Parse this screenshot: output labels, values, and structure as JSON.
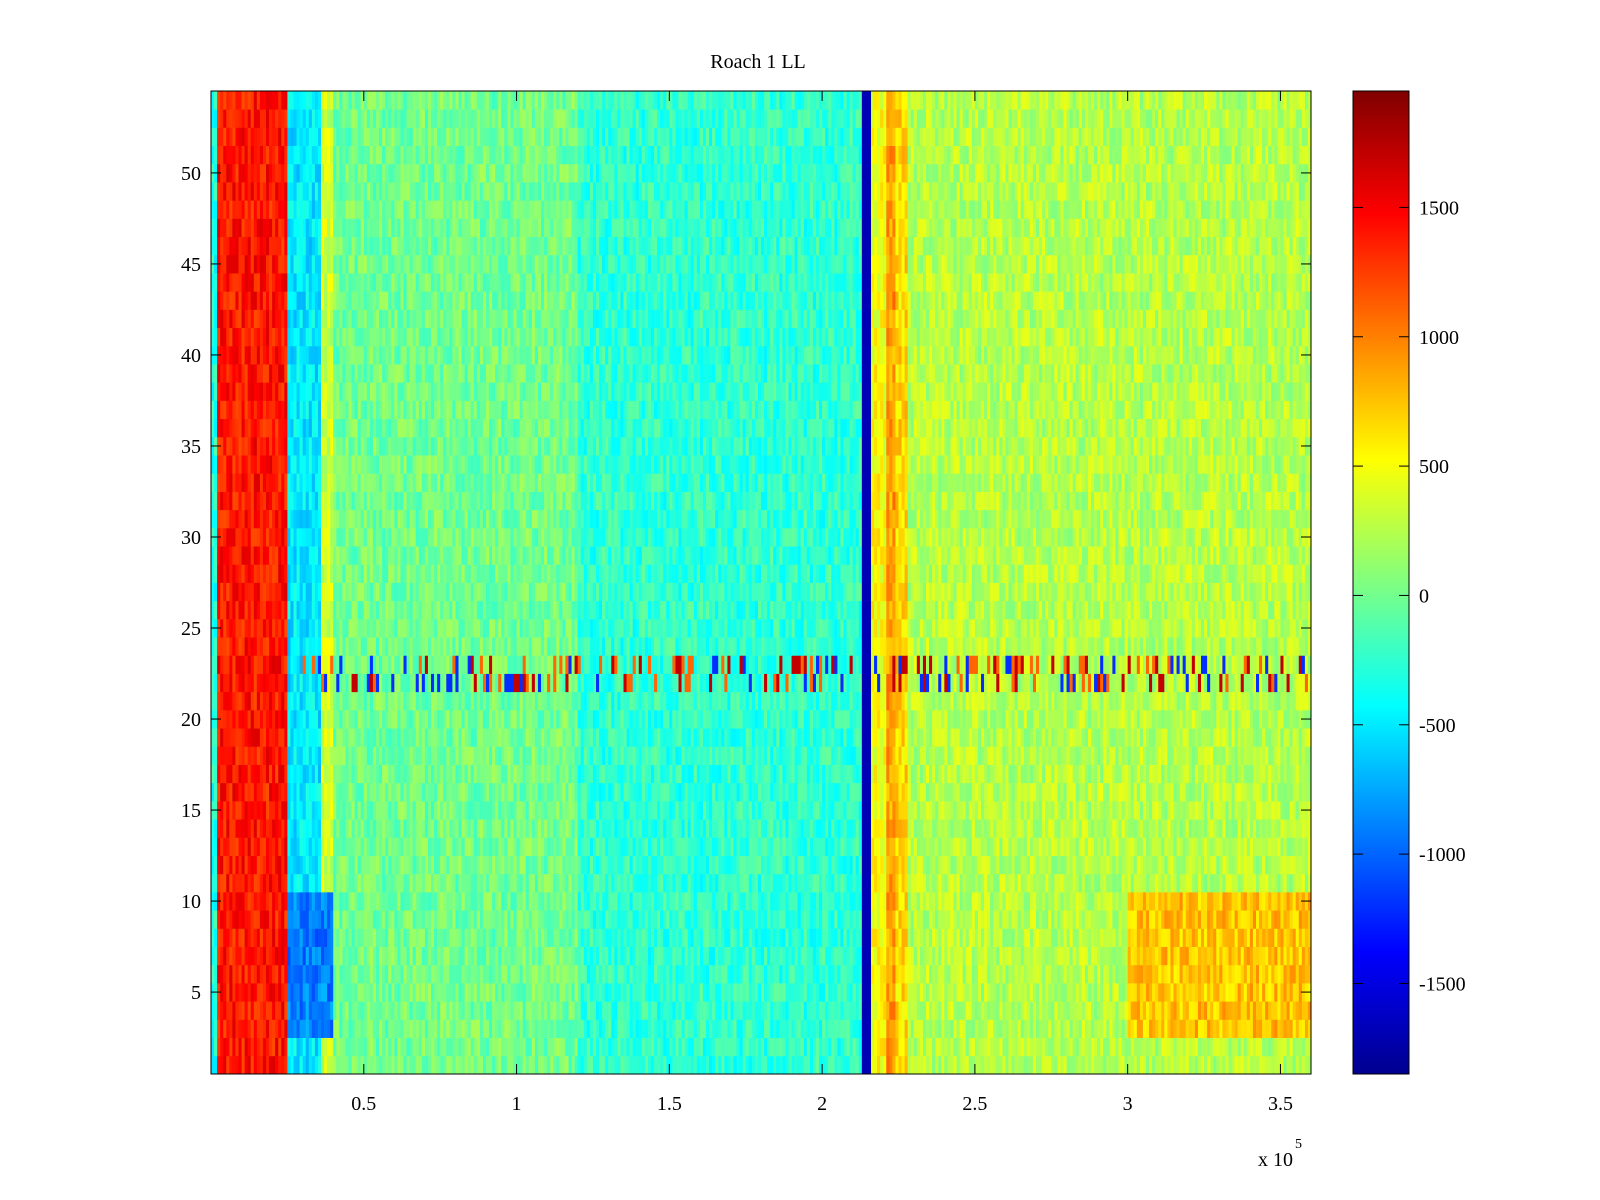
{
  "chart_data": {
    "type": "heatmap",
    "title": "Roach 1 LL",
    "xlabel": "",
    "ylabel": "",
    "x_multiplier_label": "x 10",
    "x_multiplier_exponent": "5",
    "xlim": [
      0,
      360000
    ],
    "ylim": [
      0.5,
      54.5
    ],
    "x_ticks": [
      50000,
      100000,
      150000,
      200000,
      250000,
      300000,
      350000
    ],
    "x_tick_labels": [
      "0.5",
      "1",
      "1.5",
      "2",
      "2.5",
      "3",
      "3.5"
    ],
    "y_ticks": [
      5,
      10,
      15,
      20,
      25,
      30,
      35,
      40,
      45,
      50
    ],
    "y_tick_labels": [
      "5",
      "10",
      "15",
      "20",
      "25",
      "30",
      "35",
      "40",
      "45",
      "50"
    ],
    "rows": 54,
    "colormap": "jet",
    "colorbar": {
      "range": [
        -1850,
        1950
      ],
      "ticks": [
        1500,
        1000,
        500,
        0,
        -500,
        -1000,
        -1500
      ],
      "tick_labels": [
        "1500",
        "1000",
        "500",
        "0",
        "-500",
        "-1000",
        "-1500"
      ]
    },
    "column_bands": [
      {
        "x": [
          0,
          2000
        ],
        "value": -300
      },
      {
        "x": [
          2000,
          25000
        ],
        "value": 1400
      },
      {
        "x": [
          25000,
          36000
        ],
        "value": -500
      },
      {
        "x": [
          36000,
          40000
        ],
        "value": 350
      },
      {
        "x": [
          40000,
          120000
        ],
        "value": 0
      },
      {
        "x": [
          120000,
          213000
        ],
        "value": -250
      },
      {
        "x": [
          213000,
          216500
        ],
        "value": -1650
      },
      {
        "x": [
          216500,
          221000
        ],
        "value": 500
      },
      {
        "x": [
          221000,
          224000
        ],
        "value": 900
      },
      {
        "x": [
          224000,
          228000
        ],
        "value": 650
      },
      {
        "x": [
          228000,
          360000
        ],
        "value": 250
      }
    ],
    "row_band_special": {
      "y": [
        21.5,
        23.5
      ],
      "description": "alternating high/low values"
    },
    "low_rows_region": {
      "x": [
        25000,
        40000
      ],
      "y": [
        3,
        10
      ],
      "value": -900
    },
    "warm_region": {
      "x": [
        300000,
        360000
      ],
      "y": [
        3,
        10
      ],
      "value": 750
    }
  }
}
